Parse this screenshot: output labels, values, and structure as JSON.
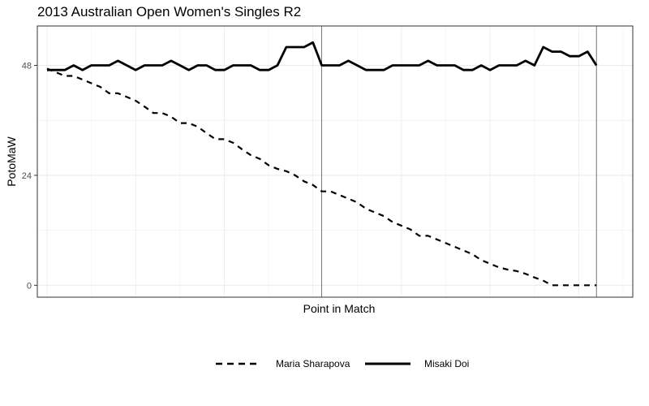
{
  "chart_data": {
    "type": "line",
    "title": "2013 Australian Open Women's Singles R2",
    "xlabel": "Point in Match",
    "ylabel": "PotoMaW",
    "yticks": [
      0,
      24,
      48
    ],
    "ylim": [
      -2.6,
      56.6
    ],
    "xlim": [
      -1.1,
      66.1
    ],
    "set_markers": [
      31,
      62
    ],
    "grid": true,
    "legend_position": "bottom",
    "series": [
      {
        "name": "Maria Sharapova",
        "style": "dashed",
        "color": "#000000",
        "x": [
          0,
          1,
          2,
          3,
          4,
          5,
          6,
          7,
          8,
          9,
          10,
          11,
          12,
          13,
          14,
          15,
          16,
          17,
          18,
          19,
          20,
          21,
          22,
          23,
          24,
          25,
          26,
          27,
          28,
          29,
          30,
          31,
          32,
          33,
          34,
          35,
          36,
          37,
          38,
          39,
          40,
          41,
          42,
          43,
          44,
          45,
          46,
          47,
          48,
          49,
          50,
          51,
          52,
          53,
          54,
          55,
          56,
          57,
          58,
          59,
          60,
          61,
          62
        ],
        "values": [
          47.3,
          46.5,
          45.7,
          45.7,
          44.9,
          44.1,
          43.3,
          41.9,
          41.9,
          41.1,
          40.3,
          39.0,
          37.6,
          37.6,
          36.8,
          35.4,
          35.4,
          34.6,
          33.2,
          31.9,
          31.9,
          31.1,
          29.7,
          28.4,
          27.6,
          26.2,
          25.4,
          24.9,
          24.0,
          22.7,
          21.9,
          20.5,
          20.5,
          19.7,
          18.9,
          18.1,
          16.7,
          15.9,
          15.1,
          13.8,
          13.0,
          12.2,
          10.8,
          10.8,
          10.0,
          9.2,
          8.4,
          7.6,
          6.8,
          5.5,
          4.7,
          3.9,
          3.4,
          3.1,
          2.5,
          1.7,
          1.0,
          0.0,
          0.0,
          0.0,
          0.0,
          0.0,
          0.0
        ]
      },
      {
        "name": "Misaki Doi",
        "style": "solid",
        "color": "#000000",
        "x": [
          0,
          1,
          2,
          3,
          4,
          5,
          6,
          7,
          8,
          9,
          10,
          11,
          12,
          13,
          14,
          15,
          16,
          17,
          18,
          19,
          20,
          21,
          22,
          23,
          24,
          25,
          26,
          27,
          28,
          29,
          30,
          31,
          32,
          33,
          34,
          35,
          36,
          37,
          38,
          39,
          40,
          41,
          42,
          43,
          44,
          45,
          46,
          47,
          48,
          49,
          50,
          51,
          52,
          53,
          54,
          55,
          56,
          57,
          58,
          59,
          60,
          61,
          62
        ],
        "values": [
          47.0,
          47.0,
          47.0,
          48.0,
          47.0,
          48.0,
          48.0,
          48.0,
          49.0,
          48.0,
          47.0,
          48.0,
          48.0,
          48.0,
          49.0,
          48.0,
          47.0,
          48.0,
          48.0,
          47.0,
          47.0,
          48.0,
          48.0,
          48.0,
          47.0,
          47.0,
          48.0,
          52.0,
          52.0,
          52.0,
          53.0,
          48.0,
          48.0,
          48.0,
          49.0,
          48.0,
          47.0,
          47.0,
          47.0,
          48.0,
          48.0,
          48.0,
          48.0,
          49.0,
          48.0,
          48.0,
          48.0,
          47.0,
          47.0,
          48.0,
          47.0,
          48.0,
          48.0,
          48.0,
          49.0,
          48.0,
          52.0,
          51.0,
          51.0,
          50.0,
          50.0,
          51.0,
          48.0
        ]
      }
    ]
  }
}
